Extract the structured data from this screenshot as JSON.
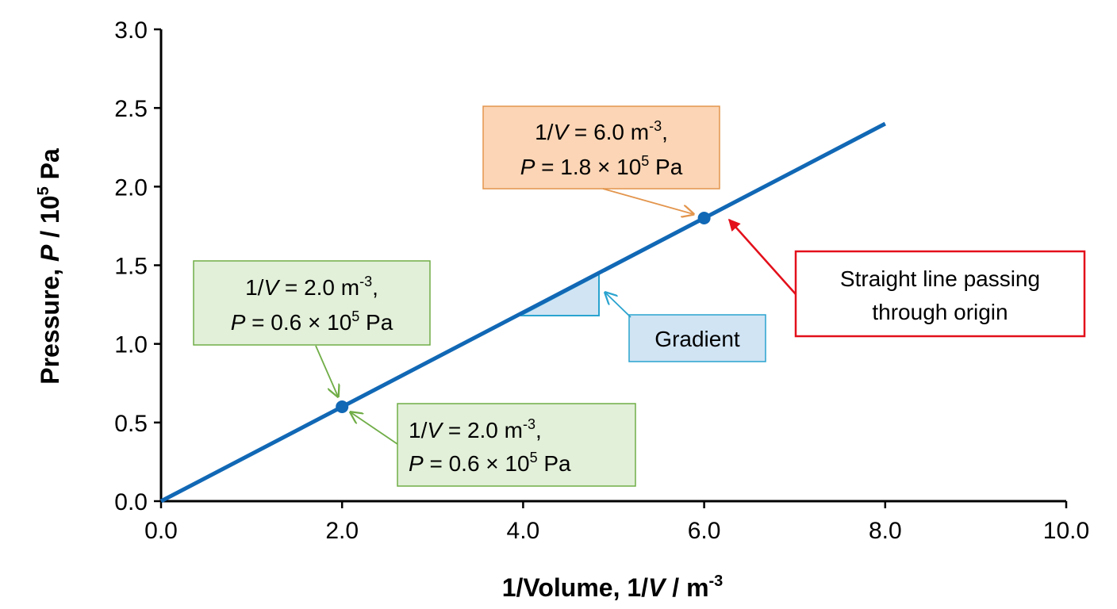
{
  "chart_data": {
    "type": "line",
    "xlabel": {
      "main": "1/Volume, 1/",
      "var": "V",
      "unit": " / m",
      "sup": "-3"
    },
    "ylabel": {
      "main": "Pressure, ",
      "var": "P",
      "unit": " / 10",
      "sup": "5",
      "tail": " Pa"
    },
    "xlim": [
      0,
      10
    ],
    "ylim": [
      0,
      3
    ],
    "x_ticks": [
      "0.0",
      "2.0",
      "4.0",
      "6.0",
      "8.0",
      "10.0"
    ],
    "y_ticks": [
      "0.0",
      "0.5",
      "1.0",
      "1.5",
      "2.0",
      "2.5",
      "3.0"
    ],
    "grid": false,
    "series": [
      {
        "x": [
          0,
          8
        ],
        "y": [
          0,
          2.4
        ],
        "color": "#1168b5"
      }
    ],
    "points": [
      {
        "x": 2.0,
        "y": 0.6
      },
      {
        "x": 6.0,
        "y": 1.8
      }
    ],
    "annotations": {
      "orange_box": {
        "line1_pre": "1/",
        "line1_var": "V",
        "line1_post": " = 6.0 m",
        "line1_sup": "-3",
        "line1_end": ",",
        "line2_var": "P",
        "line2_post": " = 1.8 × 10",
        "line2_sup": "5",
        "line2_end": " Pa",
        "fill": "#fbd5b5",
        "stroke": "#e3954d"
      },
      "green_box_top": {
        "line1_pre": "1/",
        "line1_var": "V",
        "line1_post": " = 2.0 m",
        "line1_sup": "-3",
        "line1_end": ",",
        "line2_var": "P",
        "line2_post": " = 0.6 × 10",
        "line2_sup": "5",
        "line2_end": " Pa",
        "fill": "#e2efd9",
        "stroke": "#70ad47"
      },
      "green_box_bottom": {
        "line1_pre": "1/",
        "line1_var": "V",
        "line1_post": " = 2.0 m",
        "line1_sup": "-3",
        "line1_end": ",",
        "line2_var": "P",
        "line2_post": " = 0.6 × 10",
        "line2_sup": "5",
        "line2_end": " Pa",
        "fill": "#e2efd9",
        "stroke": "#70ad47"
      },
      "gradient_box": {
        "label": "Gradient",
        "fill": "#d0e4f4",
        "stroke": "#2aa3cf"
      },
      "origin_box": {
        "line1": "Straight line passing",
        "line2": "through origin",
        "stroke": "#e3101b"
      }
    },
    "colors": {
      "line": "#1168b5",
      "axis": "#000000"
    }
  }
}
